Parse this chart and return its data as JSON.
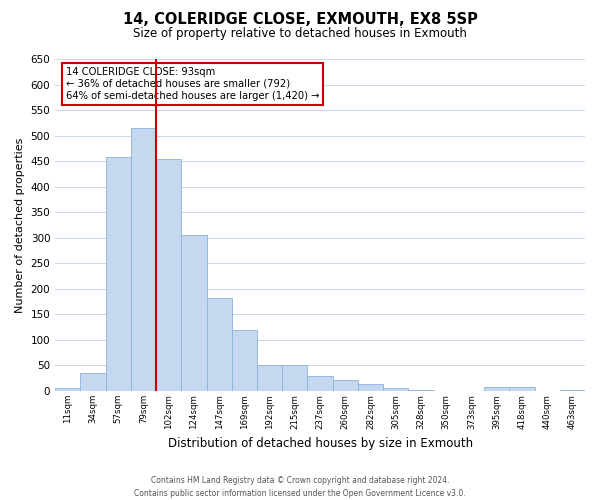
{
  "title": "14, COLERIDGE CLOSE, EXMOUTH, EX8 5SP",
  "subtitle": "Size of property relative to detached houses in Exmouth",
  "xlabel": "Distribution of detached houses by size in Exmouth",
  "ylabel": "Number of detached properties",
  "categories": [
    "11sqm",
    "34sqm",
    "57sqm",
    "79sqm",
    "102sqm",
    "124sqm",
    "147sqm",
    "169sqm",
    "192sqm",
    "215sqm",
    "237sqm",
    "260sqm",
    "282sqm",
    "305sqm",
    "328sqm",
    "350sqm",
    "373sqm",
    "395sqm",
    "418sqm",
    "440sqm",
    "463sqm"
  ],
  "values": [
    5,
    35,
    458,
    515,
    455,
    305,
    182,
    119,
    50,
    50,
    29,
    21,
    13,
    5,
    2,
    1,
    1,
    7,
    7,
    1,
    2
  ],
  "bar_color": "#c5d8f0",
  "bar_edge_color": "#8ab4d8",
  "redline_index": 4,
  "redline_color": "#cc0000",
  "annotation_title": "14 COLERIDGE CLOSE: 93sqm",
  "annotation_line1": "← 36% of detached houses are smaller (792)",
  "annotation_line2": "64% of semi-detached houses are larger (1,420) →",
  "annotation_box_color": "#ffffff",
  "annotation_box_edge": "#cc0000",
  "ylim": [
    0,
    650
  ],
  "yticks": [
    0,
    50,
    100,
    150,
    200,
    250,
    300,
    350,
    400,
    450,
    500,
    550,
    600,
    650
  ],
  "background_color": "#ffffff",
  "grid_color": "#c8d8e8",
  "footer_line1": "Contains HM Land Registry data © Crown copyright and database right 2024.",
  "footer_line2": "Contains public sector information licensed under the Open Government Licence v3.0."
}
